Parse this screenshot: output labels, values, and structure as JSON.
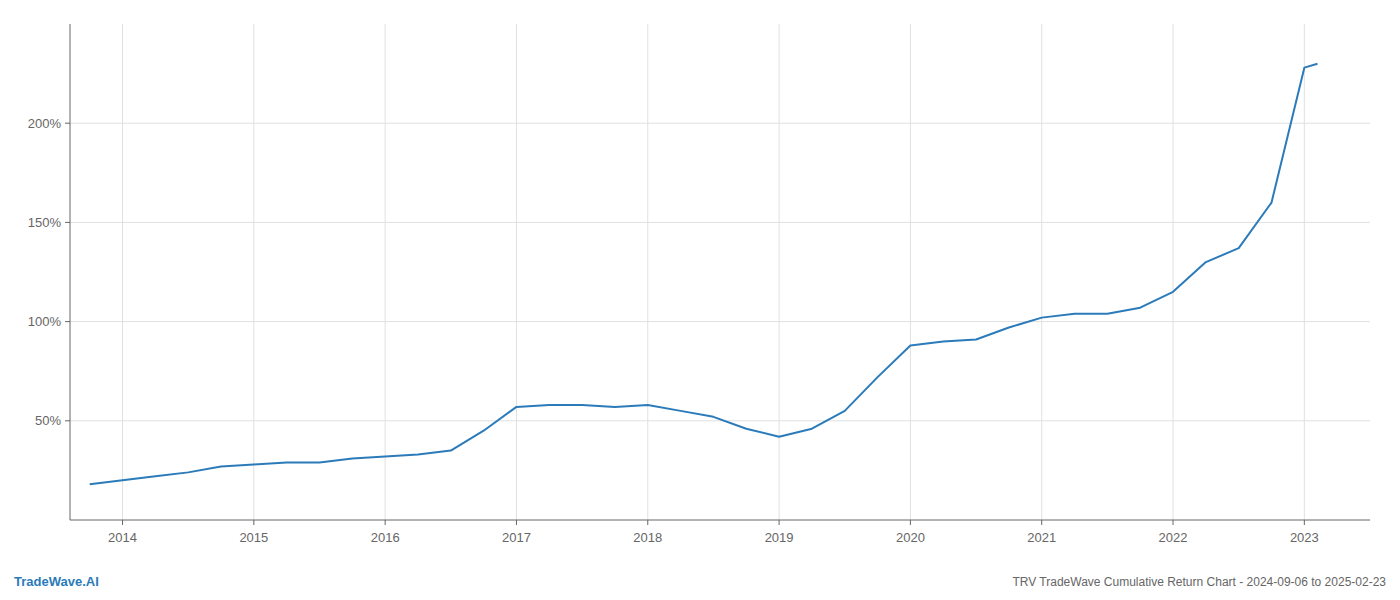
{
  "chart_data": {
    "type": "line",
    "title": "TRV TradeWave Cumulative Return Chart - 2024-09-06 to 2025-02-23",
    "annotations": [
      "TradeWave.AI"
    ],
    "color": "#2b7bba",
    "grid": true,
    "x": [
      2013.75,
      2014.0,
      2014.25,
      2014.5,
      2014.75,
      2015.0,
      2015.25,
      2015.5,
      2015.75,
      2016.0,
      2016.25,
      2016.5,
      2016.75,
      2017.0,
      2017.25,
      2017.5,
      2017.75,
      2018.0,
      2018.25,
      2018.5,
      2018.75,
      2019.0,
      2019.25,
      2019.5,
      2019.75,
      2020.0,
      2020.25,
      2020.5,
      2020.75,
      2021.0,
      2021.25,
      2021.5,
      2021.75,
      2022.0,
      2022.25,
      2022.5,
      2022.75,
      2023.0,
      2023.1
    ],
    "values": [
      18,
      20,
      22,
      24,
      27,
      28,
      29,
      29,
      31,
      32,
      33,
      35,
      45,
      57,
      58,
      58,
      57,
      58,
      55,
      52,
      46,
      42,
      46,
      55,
      72,
      88,
      90,
      91,
      97,
      102,
      104,
      104,
      107,
      115,
      130,
      137,
      160,
      228,
      230
    ],
    "xlim": [
      2013.6,
      2023.5
    ],
    "ylim": [
      0,
      250
    ],
    "xticks": [
      2014,
      2015,
      2016,
      2017,
      2018,
      2019,
      2020,
      2021,
      2022,
      2023
    ],
    "yticks": [
      {
        "value": 50,
        "label": "50%"
      },
      {
        "value": 100,
        "label": "100%"
      },
      {
        "value": 150,
        "label": "150%"
      },
      {
        "value": 200,
        "label": "200%"
      }
    ]
  }
}
